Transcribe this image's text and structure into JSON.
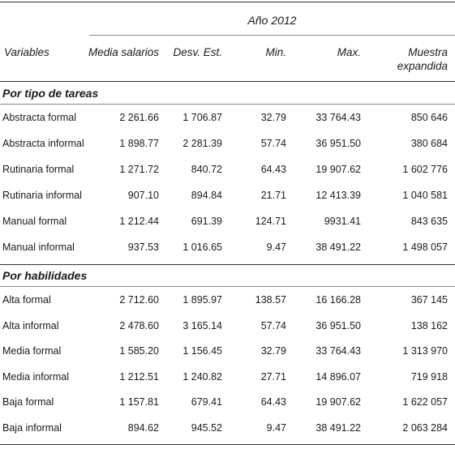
{
  "table": {
    "year_header": "Año 2012",
    "columns": [
      "Variables",
      "Media salarios",
      "Desv. Est.",
      "Min.",
      "Max.",
      "Muestra",
      "expandida"
    ],
    "sections": [
      {
        "title": "Por tipo de tareas",
        "rows": [
          [
            "Abstracta formal",
            "2 261.66",
            "1 706.87",
            "32.79",
            "33 764.43",
            "850 646"
          ],
          [
            "Abstracta informal",
            "1 898.77",
            "2 281.39",
            "57.74",
            "36 951.50",
            "380 684"
          ],
          [
            "Rutinaria formal",
            "1 271.72",
            "840.72",
            "64.43",
            "19 907.62",
            "1 602 776"
          ],
          [
            "Rutinaria informal",
            "907.10",
            "894.84",
            "21.71",
            "12 413.39",
            "1 040 581"
          ],
          [
            "Manual formal",
            "1 212.44",
            "691.39",
            "124.71",
            "9931.41",
            "843 635"
          ],
          [
            "Manual informal",
            "937.53",
            "1 016.65",
            "9.47",
            "38 491.22",
            "1 498 057"
          ]
        ]
      },
      {
        "title": "Por habilidades",
        "rows": [
          [
            "Alta formal",
            "2 712.60",
            "1 895.97",
            "138.57",
            "16 166.28",
            "367 145"
          ],
          [
            "Alta informal",
            "2 478.60",
            "3 165.14",
            "57.74",
            "36 951.50",
            "138 162"
          ],
          [
            "Media formal",
            "1 585.20",
            "1 156.45",
            "32.79",
            "33 764.43",
            "1 313 970"
          ],
          [
            "Media informal",
            "1 212.51",
            "1 240.82",
            "27.71",
            "14 896.07",
            "719 918"
          ],
          [
            "Baja formal",
            "1 157.81",
            "679.41",
            "64.43",
            "19 907.62",
            "1 622 057"
          ],
          [
            "Baja informal",
            "894.62",
            "945.52",
            "9.47",
            "38 491.22",
            "2 063 284"
          ]
        ]
      }
    ]
  }
}
